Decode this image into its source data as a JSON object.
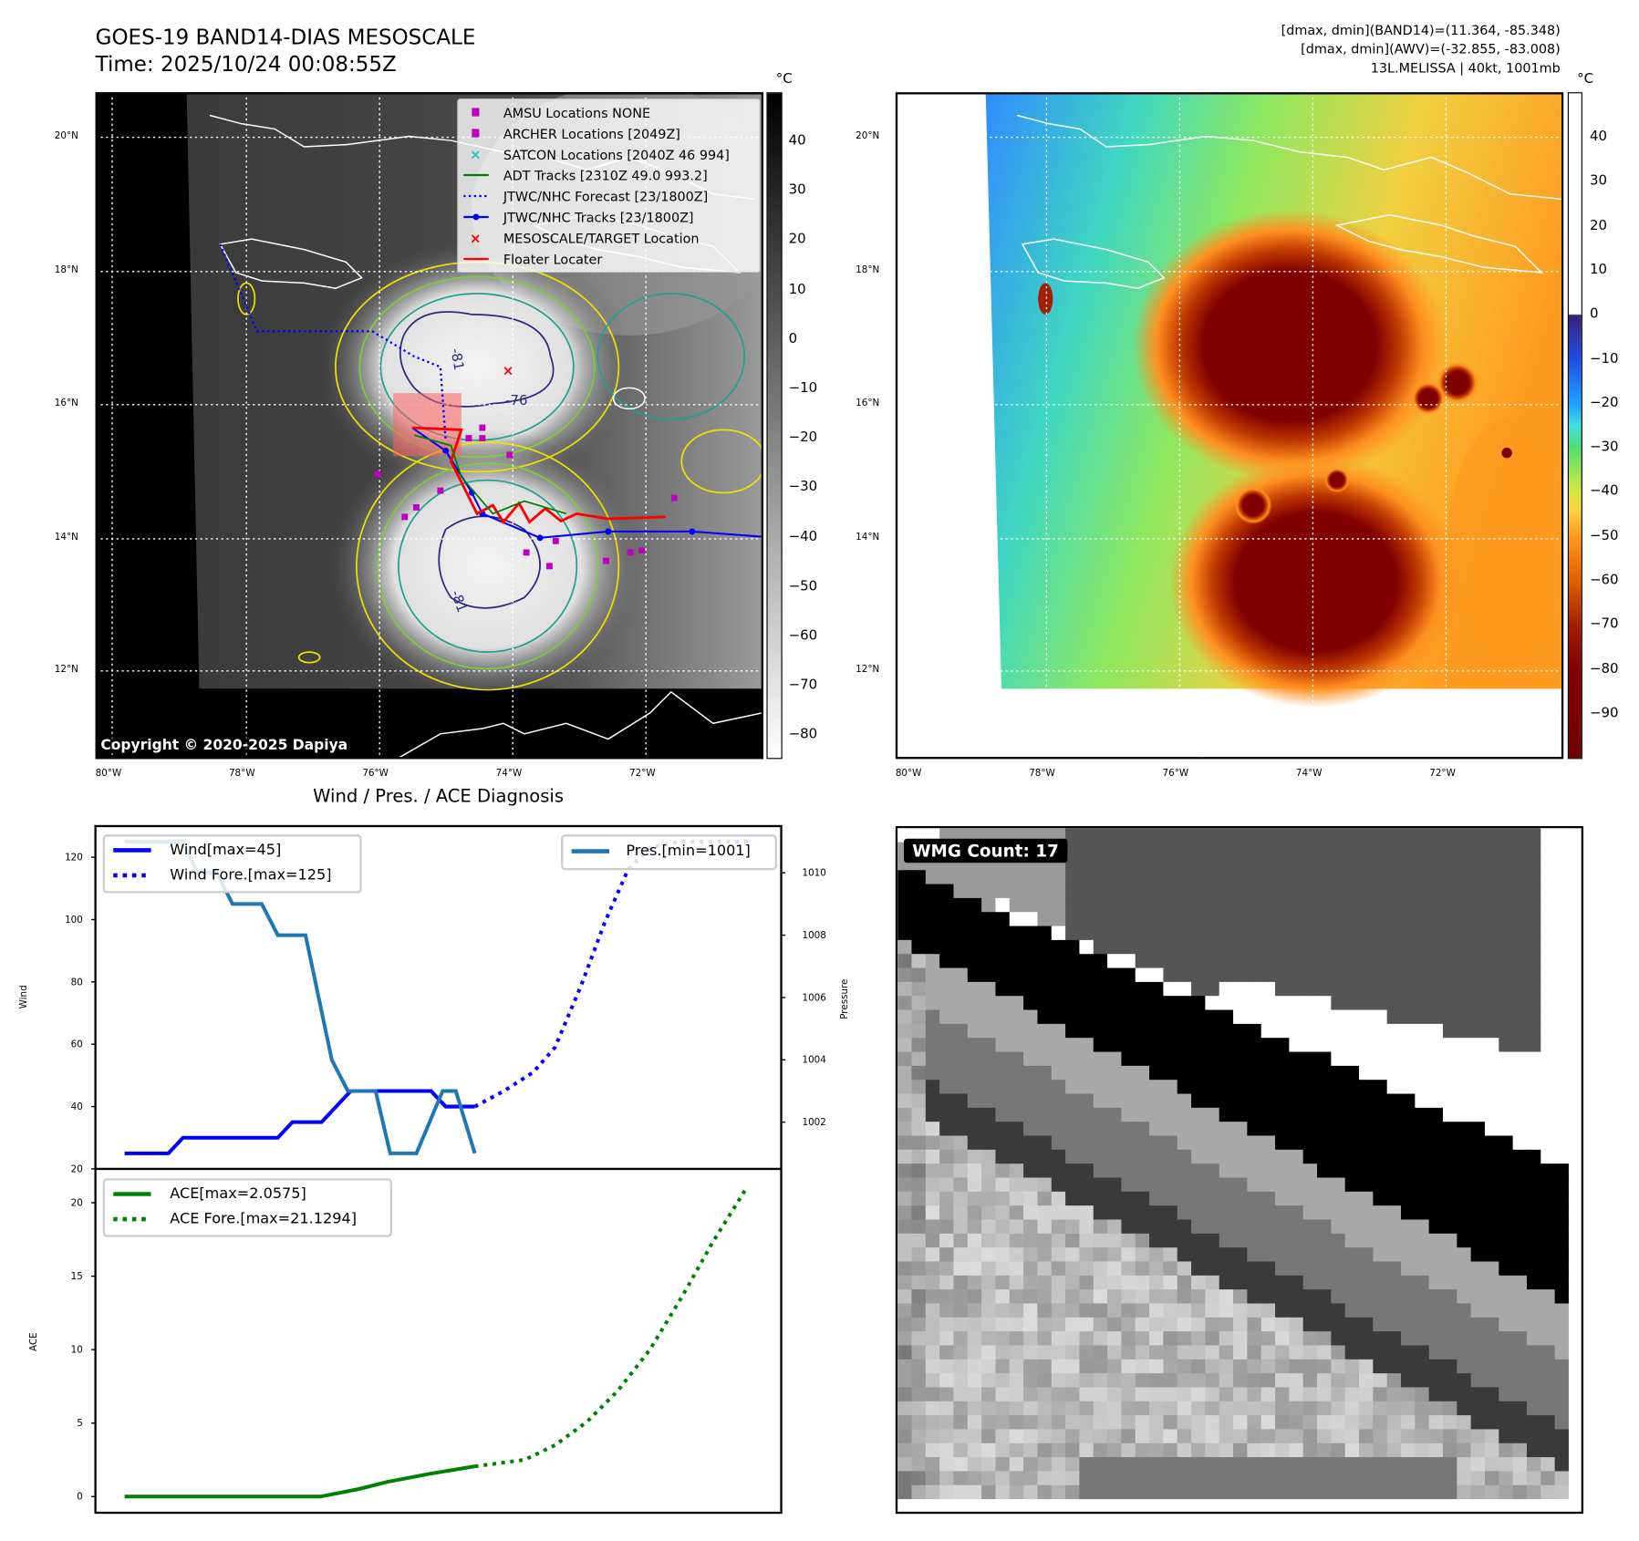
{
  "header": {
    "title": "GOES-19 BAND14-DIAS MESOSCALE",
    "time": "Time: 2025/10/24 00:08:55Z",
    "stats": [
      "[dmax, dmin](BAND14)=(11.364, -85.348)",
      "[dmax, dmin](AWV)=(-32.855, -83.008)",
      "13L.MELISSA | 40kt, 1001mb"
    ]
  },
  "map": {
    "lat_labels": [
      "20°N",
      "18°N",
      "16°N",
      "14°N",
      "12°N"
    ],
    "lon_labels": [
      "80°W",
      "78°W",
      "76°W",
      "74°W",
      "72°W"
    ],
    "contour_labels": [
      "-81",
      "-76",
      "-81"
    ],
    "copyright": "Copyright © 2020-2025 Dapiya",
    "unit": "°C",
    "left_colorbar_ticks": [
      "40",
      "30",
      "20",
      "10",
      "0",
      "−10",
      "−20",
      "−30",
      "−40",
      "−50",
      "−60",
      "−70",
      "−80"
    ],
    "right_colorbar_ticks": [
      "40",
      "30",
      "20",
      "10",
      "0",
      "−10",
      "−20",
      "−30",
      "−40",
      "−50",
      "−60",
      "−70",
      "−80",
      "−90"
    ],
    "legend": [
      {
        "label": "AMSU Locations NONE",
        "icon": "magenta-square",
        "color": "#c000c0"
      },
      {
        "label": "ARCHER Locations [2049Z]",
        "icon": "magenta-square",
        "color": "#c000c0"
      },
      {
        "label": "SATCON Locations [2040Z 46 994]",
        "icon": "cyan-x",
        "color": "#20c0c0"
      },
      {
        "label": "ADT Tracks [2310Z 49.0 993.2]",
        "icon": "green-line",
        "color": "#008000"
      },
      {
        "label": "JTWC/NHC Forecast [23/1800Z]",
        "icon": "blue-dotted-line",
        "color": "#0000ff"
      },
      {
        "label": "JTWC/NHC Tracks [23/1800Z]",
        "icon": "blue-line-dot",
        "color": "#0000ff"
      },
      {
        "label": "MESOSCALE/TARGET Location",
        "icon": "red-x",
        "color": "#ff0000"
      },
      {
        "label": "Floater Locater",
        "icon": "red-line",
        "color": "#ff0000"
      }
    ]
  },
  "wmg": {
    "label": "WMG Count: 17"
  },
  "chart_data": [
    {
      "type": "line",
      "title": "Wind / Pres. / ACE Diagnosis",
      "ylabel": "Wind",
      "y2label": "Pressure",
      "xlim": [
        -2,
        45
      ],
      "ylim": [
        20,
        130
      ],
      "y2lim": [
        1000.5,
        1011.5
      ],
      "yticks": [
        "20",
        "40",
        "60",
        "80",
        "100",
        "120"
      ],
      "y2ticks": [
        "1002",
        "1004",
        "1006",
        "1008",
        "1010"
      ],
      "series": [
        {
          "name": "Wind[max=45]",
          "axis": "left",
          "style": "solid",
          "color": "#0000ff",
          "x": [
            0,
            3,
            4,
            10.5,
            11.5,
            13.5,
            15.5,
            21,
            22,
            24
          ],
          "y": [
            25,
            25,
            30,
            30,
            35,
            35,
            45,
            45,
            40,
            40
          ]
        },
        {
          "name": "Wind Fore.[max=125]",
          "axis": "left",
          "style": "dotted",
          "color": "#0000ff",
          "x": [
            24,
            26,
            28,
            29.5,
            31.3,
            32.9,
            34.5,
            36,
            38,
            43
          ],
          "y": [
            40,
            45,
            51,
            59,
            79,
            99,
            116,
            123,
            125,
            125
          ]
        },
        {
          "name": "Pres.[min=1001]",
          "axis": "right",
          "style": "solid",
          "color": "#1f77b4",
          "x": [
            0,
            4,
            5,
            6.3,
            7.4,
            9.4,
            10.5,
            12.4,
            14.2,
            15.3,
            17.2,
            18.2,
            20,
            21.8,
            22.7,
            24
          ],
          "y": [
            1011,
            1011,
            1010,
            1010,
            1009,
            1009,
            1008,
            1008,
            1004,
            1003,
            1003,
            1001,
            1001,
            1003,
            1003,
            1001
          ]
        }
      ]
    },
    {
      "type": "line",
      "ylabel": "ACE",
      "xlim": [
        -2,
        45
      ],
      "ylim": [
        -1.1,
        22.3
      ],
      "yticks": [
        "0",
        "5",
        "10",
        "15",
        "20"
      ],
      "series": [
        {
          "name": "ACE[max=2.0575]",
          "style": "solid",
          "color": "#008000",
          "x": [
            0,
            13.4,
            16,
            18,
            20.9,
            24
          ],
          "y": [
            0,
            0,
            0.5,
            1.0,
            1.55,
            2.0575
          ]
        },
        {
          "name": "ACE Fore.[max=21.1294]",
          "style": "dotted",
          "color": "#008000",
          "x": [
            24,
            27.4,
            29.5,
            31.7,
            33.8,
            36,
            38.2,
            40.3,
            42.7
          ],
          "y": [
            2.0575,
            2.5,
            3.5,
            5.1,
            7.2,
            10,
            13.6,
            17.3,
            21.1294
          ]
        }
      ]
    }
  ]
}
